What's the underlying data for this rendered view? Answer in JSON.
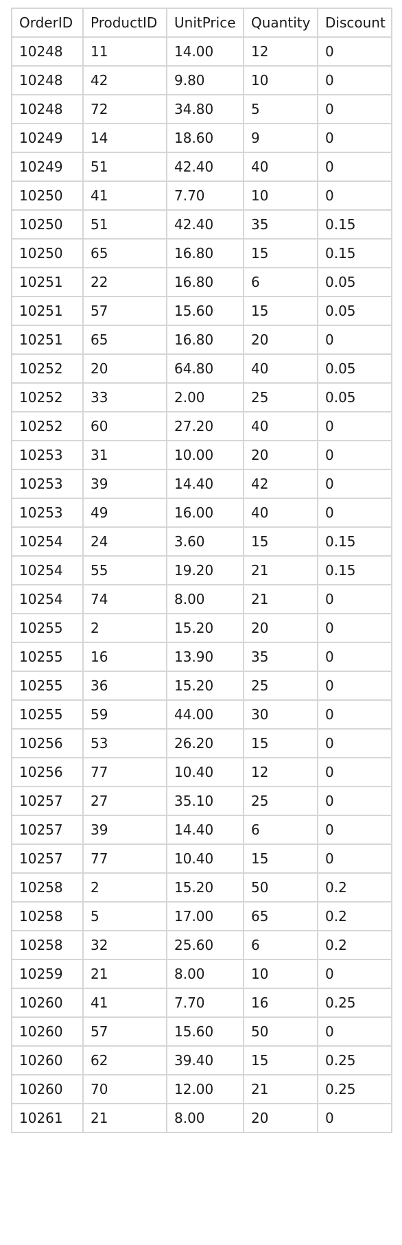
{
  "table": {
    "columns": [
      "OrderID",
      "ProductID",
      "UnitPrice",
      "Quantity",
      "Discount"
    ],
    "rows": [
      [
        "10248",
        "11",
        "14.00",
        "12",
        "0"
      ],
      [
        "10248",
        "42",
        "9.80",
        "10",
        "0"
      ],
      [
        "10248",
        "72",
        "34.80",
        "5",
        "0"
      ],
      [
        "10249",
        "14",
        "18.60",
        "9",
        "0"
      ],
      [
        "10249",
        "51",
        "42.40",
        "40",
        "0"
      ],
      [
        "10250",
        "41",
        "7.70",
        "10",
        "0"
      ],
      [
        "10250",
        "51",
        "42.40",
        "35",
        "0.15"
      ],
      [
        "10250",
        "65",
        "16.80",
        "15",
        "0.15"
      ],
      [
        "10251",
        "22",
        "16.80",
        "6",
        "0.05"
      ],
      [
        "10251",
        "57",
        "15.60",
        "15",
        "0.05"
      ],
      [
        "10251",
        "65",
        "16.80",
        "20",
        "0"
      ],
      [
        "10252",
        "20",
        "64.80",
        "40",
        "0.05"
      ],
      [
        "10252",
        "33",
        "2.00",
        "25",
        "0.05"
      ],
      [
        "10252",
        "60",
        "27.20",
        "40",
        "0"
      ],
      [
        "10253",
        "31",
        "10.00",
        "20",
        "0"
      ],
      [
        "10253",
        "39",
        "14.40",
        "42",
        "0"
      ],
      [
        "10253",
        "49",
        "16.00",
        "40",
        "0"
      ],
      [
        "10254",
        "24",
        "3.60",
        "15",
        "0.15"
      ],
      [
        "10254",
        "55",
        "19.20",
        "21",
        "0.15"
      ],
      [
        "10254",
        "74",
        "8.00",
        "21",
        "0"
      ],
      [
        "10255",
        "2",
        "15.20",
        "20",
        "0"
      ],
      [
        "10255",
        "16",
        "13.90",
        "35",
        "0"
      ],
      [
        "10255",
        "36",
        "15.20",
        "25",
        "0"
      ],
      [
        "10255",
        "59",
        "44.00",
        "30",
        "0"
      ],
      [
        "10256",
        "53",
        "26.20",
        "15",
        "0"
      ],
      [
        "10256",
        "77",
        "10.40",
        "12",
        "0"
      ],
      [
        "10257",
        "27",
        "35.10",
        "25",
        "0"
      ],
      [
        "10257",
        "39",
        "14.40",
        "6",
        "0"
      ],
      [
        "10257",
        "77",
        "10.40",
        "15",
        "0"
      ],
      [
        "10258",
        "2",
        "15.20",
        "50",
        "0.2"
      ],
      [
        "10258",
        "5",
        "17.00",
        "65",
        "0.2"
      ],
      [
        "10258",
        "32",
        "25.60",
        "6",
        "0.2"
      ],
      [
        "10259",
        "21",
        "8.00",
        "10",
        "0"
      ],
      [
        "10260",
        "41",
        "7.70",
        "16",
        "0.25"
      ],
      [
        "10260",
        "57",
        "15.60",
        "50",
        "0"
      ],
      [
        "10260",
        "62",
        "39.40",
        "15",
        "0.25"
      ],
      [
        "10260",
        "70",
        "12.00",
        "21",
        "0.25"
      ],
      [
        "10261",
        "21",
        "8.00",
        "20",
        "0"
      ]
    ]
  },
  "colors": {
    "border": "#d6d6d6",
    "text": "#1a1a1a",
    "background": "#ffffff"
  }
}
